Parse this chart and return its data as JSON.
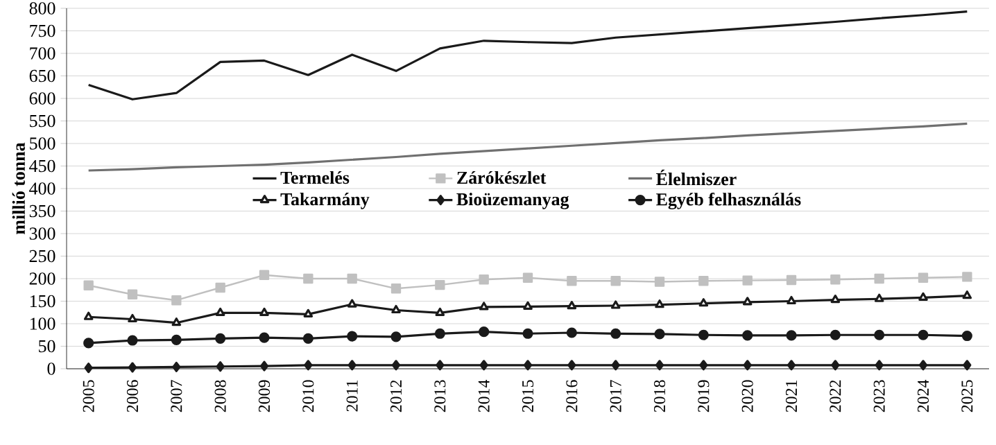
{
  "chart_data": {
    "type": "line",
    "ylabel": "millió tonna",
    "categories": [
      "2005",
      "2006",
      "2007",
      "2008",
      "2009",
      "2010",
      "2011",
      "2012",
      "2013",
      "2014",
      "2015",
      "2016",
      "2017",
      "2018",
      "2019",
      "2020",
      "2021",
      "2022",
      "2023",
      "2024",
      "2025"
    ],
    "ylim": [
      0,
      800
    ],
    "yticks": [
      0,
      50,
      100,
      150,
      200,
      250,
      300,
      350,
      400,
      450,
      500,
      550,
      600,
      650,
      700,
      750,
      800
    ],
    "grid": "y",
    "legend": "center",
    "series": [
      {
        "name": "Termelés",
        "color": "#1a1a1a",
        "marker": "none",
        "values": [
          630,
          598,
          612,
          681,
          684,
          652,
          697,
          661,
          711,
          728,
          725,
          723,
          735,
          742,
          749,
          756,
          763,
          770,
          778,
          785,
          793
        ]
      },
      {
        "name": "Zárókészlet",
        "color": "#c0c0c0",
        "marker": "square",
        "values": [
          185,
          165,
          152,
          180,
          208,
          200,
          200,
          178,
          186,
          198,
          202,
          195,
          195,
          193,
          195,
          196,
          197,
          198,
          200,
          202,
          204
        ]
      },
      {
        "name": "Élelmiszer",
        "color": "#707070",
        "marker": "none",
        "values": [
          440,
          443,
          447,
          450,
          453,
          458,
          464,
          470,
          477,
          483,
          489,
          495,
          501,
          507,
          512,
          518,
          523,
          528,
          533,
          538,
          544
        ]
      },
      {
        "name": "Takarmány",
        "color": "#1a1a1a",
        "marker": "triangle",
        "values": [
          115,
          110,
          102,
          124,
          124,
          121,
          143,
          130,
          124,
          137,
          138,
          139,
          140,
          142,
          145,
          148,
          150,
          153,
          155,
          158,
          162
        ]
      },
      {
        "name": "Bioüzemanyag",
        "color": "#1a1a1a",
        "marker": "diamond",
        "values": [
          2,
          3,
          4,
          5,
          6,
          8,
          8,
          8,
          8,
          8,
          8,
          8,
          8,
          8,
          8,
          8,
          8,
          8,
          8,
          8,
          8
        ]
      },
      {
        "name": "Egyéb felhasználás",
        "color": "#1a1a1a",
        "marker": "circle",
        "values": [
          57,
          63,
          64,
          67,
          69,
          67,
          72,
          71,
          78,
          82,
          78,
          80,
          78,
          77,
          75,
          74,
          74,
          75,
          75,
          75,
          73
        ]
      }
    ]
  }
}
